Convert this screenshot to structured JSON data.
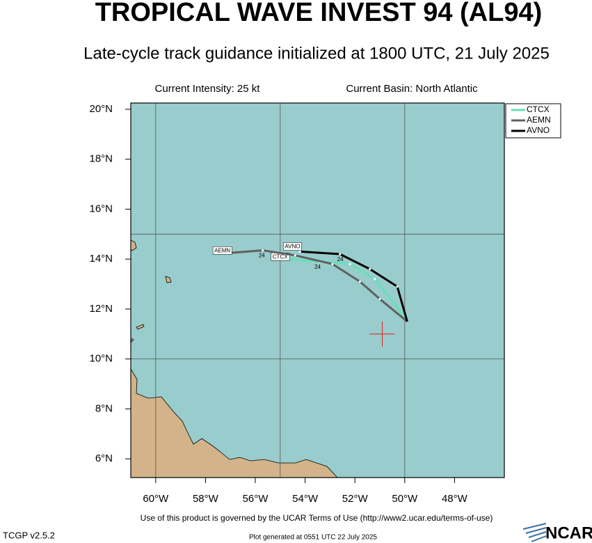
{
  "chart_data": {
    "type": "map",
    "title": "TROPICAL WAVE INVEST 94 (AL94)",
    "subtitle": "Late-cycle track guidance initialized at 1800 UTC, 21 July 2025",
    "intensity_text": "Current Intensity: 25 kt",
    "basin_text": "Current Basin: North Atlantic",
    "xlim": [
      -61,
      -46
    ],
    "ylim": [
      5.25,
      20.25
    ],
    "xticks": [
      {
        "value": -60,
        "label": "60°W"
      },
      {
        "value": -58,
        "label": "58°W"
      },
      {
        "value": -56,
        "label": "56°W"
      },
      {
        "value": -54,
        "label": "54°W"
      },
      {
        "value": -52,
        "label": "52°W"
      },
      {
        "value": -50,
        "label": "50°W"
      },
      {
        "value": -48,
        "label": "48°W"
      }
    ],
    "yticks": [
      {
        "value": 6,
        "label": "6°N"
      },
      {
        "value": 8,
        "label": "8°N"
      },
      {
        "value": 10,
        "label": "10°N"
      },
      {
        "value": 12,
        "label": "12°N"
      },
      {
        "value": 14,
        "label": "14°N"
      },
      {
        "value": 16,
        "label": "16°N"
      },
      {
        "value": 18,
        "label": "18°N"
      },
      {
        "value": 20,
        "label": "20°N"
      }
    ],
    "grid_lon": [
      -60,
      -55,
      -50
    ],
    "grid_lat": [
      10,
      15
    ],
    "legend": "upper right",
    "current_position": {
      "x": -50.9,
      "y": 11.0
    },
    "series": [
      {
        "name": "CTCX",
        "color": "#66e0b8",
        "end_label": "CTCX",
        "hour_label": "24",
        "x": [
          -49.9,
          -51.2,
          -52.2,
          -53.4,
          -54.7
        ],
        "values": [
          11.55,
          13.2,
          13.8,
          13.9,
          14.0
        ]
      },
      {
        "name": "AEMN",
        "color": "#606060",
        "end_label": "AEMN",
        "hour_label": "24",
        "x": [
          -49.9,
          -51.0,
          -51.8,
          -52.9,
          -54.4,
          -55.7,
          -57.0
        ],
        "values": [
          11.5,
          12.4,
          13.1,
          13.8,
          14.15,
          14.35,
          14.25
        ]
      },
      {
        "name": "AVNO",
        "color": "#000000",
        "end_label": "AVNO",
        "hour_label": "24",
        "x": [
          -49.9,
          -50.3,
          -51.4,
          -52.6,
          -54.2
        ],
        "values": [
          11.5,
          12.9,
          13.6,
          14.2,
          14.3
        ]
      }
    ],
    "terms_text": "Use of this product is governed by the UCAR Terms of Use (http://www2.ucar.edu/terms-of-use)",
    "version_text": "TCGP v2.5.2",
    "generated_text": "Plot generated at 0551 UTC   22 July 2025",
    "logo_text": "NCAR"
  }
}
